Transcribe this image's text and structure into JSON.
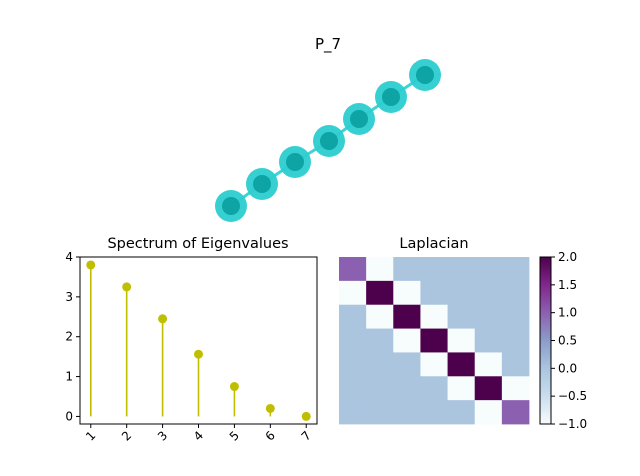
{
  "figure_title": "P_7",
  "graph": {
    "nodes": [
      1,
      2,
      3,
      4,
      5,
      6,
      7
    ],
    "edges": [
      [
        1,
        2
      ],
      [
        2,
        3
      ],
      [
        3,
        4
      ],
      [
        4,
        5
      ],
      [
        5,
        6
      ],
      [
        6,
        7
      ]
    ],
    "node_color": "#2ccdd0",
    "edge_color": "#2ccdd0"
  },
  "chart_data": [
    {
      "type": "stem",
      "title": "Spectrum of Eigenvalues",
      "x": [
        1,
        2,
        3,
        4,
        5,
        6,
        7
      ],
      "values": [
        3.8,
        3.25,
        2.45,
        1.56,
        0.75,
        0.2,
        0.0
      ],
      "xticks": [
        "1",
        "2",
        "3",
        "4",
        "5",
        "6",
        "7"
      ],
      "yticks": [
        "0",
        "1",
        "2",
        "3",
        "4"
      ],
      "xlim": [
        0.7,
        7.3
      ],
      "ylim": [
        -0.19,
        4.0
      ],
      "color": "#bfbf00"
    },
    {
      "type": "heatmap",
      "title": "Laplacian",
      "matrix": [
        [
          1,
          -1,
          0,
          0,
          0,
          0,
          0
        ],
        [
          -1,
          2,
          -1,
          0,
          0,
          0,
          0
        ],
        [
          0,
          -1,
          2,
          -1,
          0,
          0,
          0
        ],
        [
          0,
          0,
          -1,
          2,
          -1,
          0,
          0
        ],
        [
          0,
          0,
          0,
          -1,
          2,
          -1,
          0
        ],
        [
          0,
          0,
          0,
          0,
          -1,
          2,
          -1
        ],
        [
          0,
          0,
          0,
          0,
          0,
          -1,
          1
        ]
      ],
      "vmin": -1.0,
      "vmax": 2.0,
      "colormap": {
        "-1": "#f7fcfd",
        "0": "#abc5df",
        "1": "#8c60b0",
        "2": "#4d004b"
      },
      "colorbar_ticks": [
        "2.0",
        "1.5",
        "1.0",
        "0.5",
        "0.0",
        "−0.5",
        "−1.0"
      ]
    }
  ]
}
